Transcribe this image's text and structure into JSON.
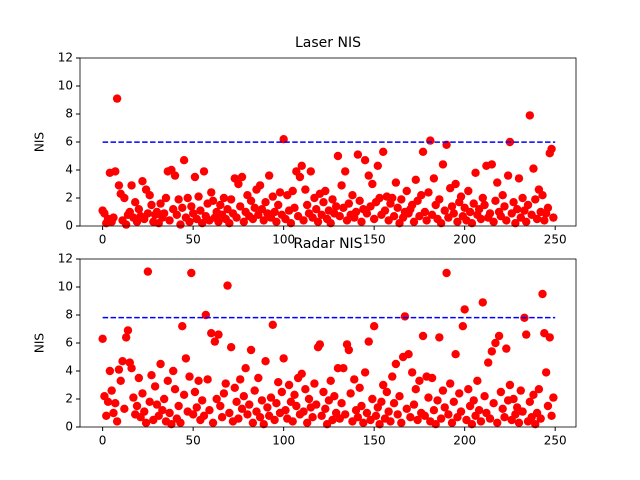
{
  "chart_data": [
    {
      "type": "scatter",
      "title": "Laser NIS",
      "ylabel": "NIS",
      "color": "#ff0000",
      "hline": 5.99,
      "hline_color": "#0000ff",
      "hline_xrange": [
        0,
        250
      ],
      "xlim": [
        -12.5,
        261.5
      ],
      "xticks": [
        0,
        50,
        100,
        150,
        200,
        250
      ],
      "ylim": [
        0,
        12
      ],
      "yticks": [
        0,
        2,
        4,
        6,
        8,
        10,
        12
      ],
      "x": [
        0,
        1,
        2,
        3,
        4,
        5,
        6,
        7,
        8,
        9,
        10,
        11,
        12,
        13,
        14,
        15,
        16,
        17,
        18,
        19,
        20,
        21,
        22,
        23,
        24,
        25,
        26,
        27,
        28,
        29,
        30,
        31,
        32,
        33,
        34,
        35,
        36,
        37,
        38,
        39,
        40,
        41,
        42,
        43,
        44,
        45,
        46,
        47,
        48,
        49,
        50,
        51,
        52,
        53,
        54,
        55,
        56,
        57,
        58,
        59,
        60,
        61,
        62,
        63,
        64,
        65,
        66,
        67,
        68,
        69,
        70,
        71,
        72,
        73,
        74,
        75,
        76,
        77,
        78,
        79,
        80,
        81,
        82,
        83,
        84,
        85,
        86,
        87,
        88,
        89,
        90,
        91,
        92,
        93,
        94,
        95,
        96,
        97,
        98,
        99,
        100,
        101,
        102,
        103,
        104,
        105,
        106,
        107,
        108,
        109,
        110,
        111,
        112,
        113,
        114,
        115,
        116,
        117,
        118,
        119,
        120,
        121,
        122,
        123,
        124,
        125,
        126,
        127,
        128,
        129,
        130,
        131,
        132,
        133,
        134,
        135,
        136,
        137,
        138,
        139,
        140,
        141,
        142,
        143,
        144,
        145,
        146,
        147,
        148,
        149,
        150,
        151,
        152,
        153,
        154,
        155,
        156,
        157,
        158,
        159,
        160,
        161,
        162,
        163,
        164,
        165,
        166,
        167,
        168,
        169,
        170,
        171,
        172,
        173,
        174,
        175,
        176,
        177,
        178,
        179,
        180,
        181,
        182,
        183,
        184,
        185,
        186,
        187,
        188,
        189,
        190,
        191,
        192,
        193,
        194,
        195,
        196,
        197,
        198,
        199,
        200,
        201,
        202,
        203,
        204,
        205,
        206,
        207,
        208,
        209,
        210,
        211,
        212,
        213,
        214,
        215,
        216,
        217,
        218,
        219,
        220,
        221,
        222,
        223,
        224,
        225,
        226,
        227,
        228,
        229,
        230,
        231,
        232,
        233,
        234,
        235,
        236,
        237,
        238,
        239,
        240,
        241,
        242,
        243,
        244,
        245,
        246,
        247,
        248,
        249
      ],
      "y": [
        1.1,
        0.9,
        0.2,
        0.5,
        3.8,
        0.3,
        0.6,
        3.9,
        9.1,
        2.9,
        2.3,
        0.4,
        2.0,
        0.1,
        0.8,
        1.0,
        2.9,
        0.6,
        1.7,
        0.3,
        1.2,
        0.7,
        3.2,
        0.5,
        2.6,
        0.9,
        2.2,
        1.5,
        0.3,
        0.8,
        1.0,
        0.2,
        1.6,
        0.6,
        0.9,
        2.0,
        3.9,
        0.4,
        4.0,
        1.2,
        3.6,
        0.8,
        1.9,
        0.1,
        1.3,
        4.7,
        0.6,
        2.0,
        0.3,
        1.4,
        0.9,
        3.5,
        0.5,
        2.1,
        1.1,
        0.2,
        3.9,
        0.7,
        1.6,
        0.4,
        2.4,
        1.8,
        0.6,
        1.0,
        0.3,
        1.5,
        0.8,
        2.0,
        0.5,
        1.2,
        0.2,
        1.9,
        0.9,
        3.4,
        0.6,
        3.0,
        1.4,
        3.5,
        0.3,
        1.0,
        2.2,
        0.7,
        1.8,
        0.5,
        1.3,
        2.6,
        0.8,
        2.9,
        1.2,
        0.4,
        1.7,
        0.9,
        3.6,
        0.6,
        2.1,
        1.0,
        0.3,
        1.5,
        2.4,
        0.8,
        6.2,
        0.5,
        2.2,
        1.1,
        0.2,
        2.5,
        1.3,
        3.9,
        0.7,
        3.5,
        4.3,
        0.4,
        2.6,
        1.5,
        0.9,
        3.9,
        0.6,
        2.0,
        1.2,
        0.3,
        2.3,
        0.8,
        1.7,
        2.5,
        0.5,
        1.1,
        0.2,
        1.9,
        0.9,
        1.4,
        5.0,
        0.7,
        2.9,
        1.3,
        3.9,
        0.4,
        1.6,
        0.8,
        2.2,
        0.6,
        1.0,
        5.1,
        1.8,
        0.3,
        1.2,
        4.7,
        0.9,
        3.6,
        1.4,
        3.0,
        0.5,
        1.7,
        4.3,
        2.0,
        0.8,
        5.3,
        1.1,
        2.1,
        0.4,
        1.6,
        2.0,
        0.7,
        3.1,
        1.3,
        0.2,
        1.9,
        0.6,
        1.0,
        2.5,
        0.9,
        1.2,
        1.5,
        0.3,
        3.3,
        1.8,
        0.7,
        2.2,
        5.3,
        1.0,
        0.4,
        2.4,
        6.1,
        0.8,
        3.4,
        1.5,
        0.5,
        1.9,
        0.2,
        4.4,
        1.1,
        5.8,
        0.6,
        2.7,
        1.4,
        0.9,
        3.0,
        0.3,
        1.7,
        2.1,
        0.7,
        1.3,
        0.4,
        2.5,
        1.0,
        0.2,
        1.6,
        3.8,
        0.8,
        1.2,
        0.5,
        2.0,
        1.5,
        4.3,
        0.6,
        0.9,
        4.4,
        0.3,
        1.8,
        3.1,
        1.0,
        0.7,
        2.2,
        1.4,
        0.4,
        3.6,
        6.0,
        0.9,
        1.7,
        0.2,
        1.2,
        3.4,
        0.6,
        2.0,
        1.1,
        0.3,
        1.5,
        7.9,
        0.8,
        4.1,
        1.9,
        0.5,
        2.6,
        1.0,
        2.2,
        0.4,
        0.9,
        1.3,
        5.2,
        5.5,
        0.6
      ]
    },
    {
      "type": "scatter",
      "title": "Radar NIS",
      "ylabel": "NIS",
      "color": "#ff0000",
      "hline": 7.81,
      "hline_color": "#0000ff",
      "hline_xrange": [
        0,
        250
      ],
      "xlim": [
        -12.5,
        261.5
      ],
      "xticks": [
        0,
        50,
        100,
        150,
        200,
        250
      ],
      "ylim": [
        0,
        12
      ],
      "yticks": [
        0,
        2,
        4,
        6,
        8,
        10,
        12
      ],
      "x": [
        0,
        1,
        2,
        3,
        4,
        5,
        6,
        7,
        8,
        9,
        10,
        11,
        12,
        13,
        14,
        15,
        16,
        17,
        18,
        19,
        20,
        21,
        22,
        23,
        24,
        25,
        26,
        27,
        28,
        29,
        30,
        31,
        32,
        33,
        34,
        35,
        36,
        37,
        38,
        39,
        40,
        41,
        42,
        43,
        44,
        45,
        46,
        47,
        48,
        49,
        50,
        51,
        52,
        53,
        54,
        55,
        56,
        57,
        58,
        59,
        60,
        61,
        62,
        63,
        64,
        65,
        66,
        67,
        68,
        69,
        70,
        71,
        72,
        73,
        74,
        75,
        76,
        77,
        78,
        79,
        80,
        81,
        82,
        83,
        84,
        85,
        86,
        87,
        88,
        89,
        90,
        91,
        92,
        93,
        94,
        95,
        96,
        97,
        98,
        99,
        100,
        101,
        102,
        103,
        104,
        105,
        106,
        107,
        108,
        109,
        110,
        111,
        112,
        113,
        114,
        115,
        116,
        117,
        118,
        119,
        120,
        121,
        122,
        123,
        124,
        125,
        126,
        127,
        128,
        129,
        130,
        131,
        132,
        133,
        134,
        135,
        136,
        137,
        138,
        139,
        140,
        141,
        142,
        143,
        144,
        145,
        146,
        147,
        148,
        149,
        150,
        151,
        152,
        153,
        154,
        155,
        156,
        157,
        158,
        159,
        160,
        161,
        162,
        163,
        164,
        165,
        166,
        167,
        168,
        169,
        170,
        171,
        172,
        173,
        174,
        175,
        176,
        177,
        178,
        179,
        180,
        181,
        182,
        183,
        184,
        185,
        186,
        187,
        188,
        189,
        190,
        191,
        192,
        193,
        194,
        195,
        196,
        197,
        198,
        199,
        200,
        201,
        202,
        203,
        204,
        205,
        206,
        207,
        208,
        209,
        210,
        211,
        212,
        213,
        214,
        215,
        216,
        217,
        218,
        219,
        220,
        221,
        222,
        223,
        224,
        225,
        226,
        227,
        228,
        229,
        230,
        231,
        232,
        233,
        234,
        235,
        236,
        237,
        238,
        239,
        240,
        241,
        242,
        243,
        244,
        245,
        246,
        247,
        248,
        249
      ],
      "y": [
        6.3,
        2.2,
        0.8,
        1.8,
        4.0,
        2.6,
        1.0,
        1.7,
        0.4,
        4.1,
        3.3,
        4.7,
        1.3,
        6.4,
        6.9,
        4.6,
        4.2,
        2.1,
        0.9,
        1.5,
        3.5,
        0.7,
        2.4,
        1.1,
        0.3,
        11.1,
        1.8,
        3.7,
        0.5,
        2.9,
        1.6,
        0.8,
        4.5,
        1.2,
        2.0,
        0.4,
        3.3,
        1.0,
        0.2,
        4.0,
        2.7,
        0.6,
        1.5,
        0.3,
        7.2,
        2.3,
        4.9,
        1.1,
        3.6,
        11.0,
        0.9,
        2.5,
        1.4,
        3.3,
        0.5,
        1.9,
        0.8,
        8.0,
        3.4,
        1.2,
        6.7,
        0.3,
        6.1,
        2.0,
        6.6,
        1.5,
        0.7,
        2.4,
        3.1,
        10.1,
        1.0,
        5.7,
        0.4,
        2.8,
        1.8,
        0.6,
        3.4,
        1.3,
        2.2,
        4.2,
        0.9,
        1.6,
        5.5,
        0.3,
        2.6,
        1.1,
        3.5,
        0.7,
        1.9,
        0.2,
        4.7,
        1.4,
        0.8,
        2.1,
        7.3,
        0.5,
        1.7,
        3.2,
        1.0,
        2.5,
        4.9,
        1.2,
        0.6,
        3.0,
        1.8,
        0.4,
        2.3,
        1.5,
        3.5,
        0.9,
        3.8,
        1.1,
        2.7,
        0.3,
        2.0,
        1.4,
        0.7,
        3.1,
        1.6,
        5.7,
        5.9,
        0.8,
        2.5,
        1.3,
        0.2,
        1.9,
        3.3,
        0.5,
        2.2,
        1.0,
        4.2,
        0.6,
        1.7,
        4.2,
        0.9,
        5.9,
        5.5,
        2.4,
        0.4,
        3.4,
        1.2,
        0.7,
        2.8,
        1.5,
        0.3,
        3.9,
        1.0,
        6.1,
        0.5,
        2.0,
        7.2,
        0.8,
        1.4,
        0.2,
        1.8,
        3.0,
        0.6,
        2.5,
        1.1,
        0.4,
        3.6,
        1.7,
        4.5,
        0.9,
        2.2,
        0.3,
        5.0,
        7.9,
        1.3,
        5.2,
        0.7,
        3.9,
        1.6,
        2.7,
        0.5,
        3.3,
        1.0,
        6.5,
        0.8,
        3.6,
        2.1,
        0.4,
        3.5,
        1.2,
        0.2,
        1.9,
        6.4,
        0.6,
        2.6,
        1.4,
        11.0,
        0.9,
        3.1,
        0.3,
        1.8,
        5.2,
        0.7,
        2.4,
        1.1,
        7.2,
        8.4,
        0.5,
        2.7,
        1.5,
        0.2,
        1.9,
        0.8,
        3.3,
        1.2,
        0.4,
        8.9,
        2.2,
        1.0,
        4.6,
        0.6,
        5.4,
        1.7,
        6.0,
        0.3,
        6.5,
        2.5,
        1.3,
        0.7,
        5.6,
        1.9,
        3.0,
        0.5,
        2.0,
        0.9,
        1.4,
        0.3,
        2.6,
        1.1,
        7.8,
        6.6,
        0.4,
        1.8,
        0.7,
        2.3,
        0.2,
        1.0,
        2.7,
        0.6,
        9.5,
        6.7,
        3.9,
        1.5,
        6.4,
        0.8,
        2.1
      ]
    }
  ]
}
